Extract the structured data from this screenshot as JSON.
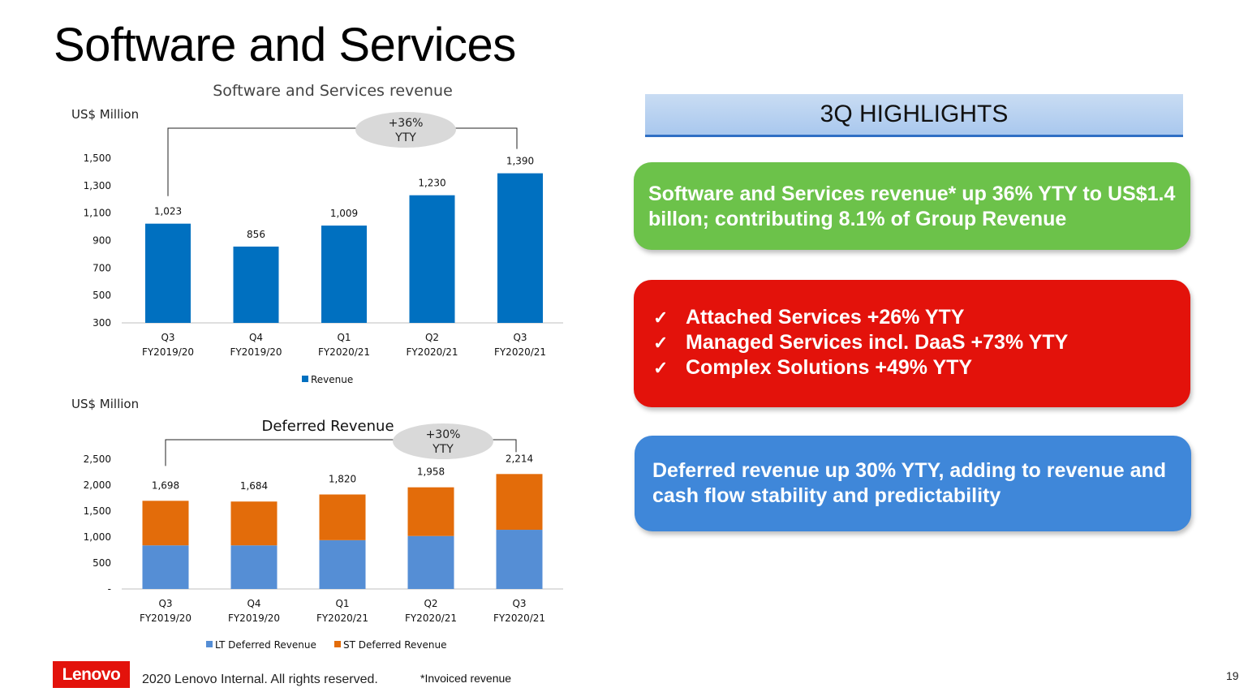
{
  "page": {
    "title": "Software and Services",
    "page_number": "19"
  },
  "highlights": {
    "header": "3Q HIGHLIGHTS",
    "green_text": "Software and Services revenue* up 36% YTY to US$1.4 billon; contributing 8.1% of Group Revenue",
    "checkmark": "✓",
    "red_items": [
      "Attached Services +26% YTY",
      "Managed Services incl. DaaS +73% YTY",
      "Complex Solutions +49% YTY"
    ],
    "blue_text": "Deferred revenue up 30% YTY, adding to revenue and cash flow stability and predictability"
  },
  "footer": {
    "logo": "Lenovo",
    "copyright": "2020 Lenovo Internal. All rights reserved.",
    "note": "*Invoiced revenue"
  },
  "colors": {
    "revenue_bar": "#0070c0",
    "lt_deferred": "#558ed5",
    "st_deferred": "#e36c0a",
    "green_card": "#6cc24a",
    "red_card": "#e3120b",
    "blue_card": "#3f87d9"
  },
  "chart_data": [
    {
      "type": "bar",
      "title": "Software and Services revenue",
      "ylabel": "US$ Million",
      "categories": [
        [
          "Q3",
          "FY2019/20"
        ],
        [
          "Q4",
          "FY2019/20"
        ],
        [
          "Q1",
          "FY2020/21"
        ],
        [
          "Q2",
          "FY2020/21"
        ],
        [
          "Q3",
          "FY2020/21"
        ]
      ],
      "series": [
        {
          "name": "Revenue",
          "values": [
            1023,
            856,
            1009,
            1230,
            1390
          ]
        }
      ],
      "data_labels": [
        "1,023",
        "856",
        "1,009",
        "1,230",
        "1,390"
      ],
      "yticks": [
        "1,500",
        "1,300",
        "1,100",
        "900",
        "700",
        "500",
        "300"
      ],
      "ytick_values": [
        1500,
        1300,
        1100,
        900,
        700,
        500,
        300
      ],
      "ylim": [
        300,
        1500
      ],
      "annotation": {
        "line1": "+36%",
        "line2": "YTY"
      },
      "legend_position": "bottom",
      "grid": false
    },
    {
      "type": "bar",
      "stacked": true,
      "title": "Deferred Revenue",
      "ylabel": "US$ Million",
      "categories": [
        [
          "Q3",
          "FY2019/20"
        ],
        [
          "Q4",
          "FY2019/20"
        ],
        [
          "Q1",
          "FY2020/21"
        ],
        [
          "Q2",
          "FY2020/21"
        ],
        [
          "Q3",
          "FY2020/21"
        ]
      ],
      "series": [
        {
          "name": "LT Deferred Revenue",
          "values": [
            840,
            840,
            940,
            1020,
            1140
          ]
        },
        {
          "name": "ST Deferred Revenue",
          "values": [
            858,
            844,
            880,
            938,
            1074
          ]
        }
      ],
      "totals": [
        1698,
        1684,
        1820,
        1958,
        2214
      ],
      "data_labels": [
        "1,698",
        "1,684",
        "1,820",
        "1,958",
        "2,214"
      ],
      "yticks": [
        "2,500",
        "2,000",
        "1,500",
        "1,000",
        "500",
        "-"
      ],
      "ytick_values": [
        2500,
        2000,
        1500,
        1000,
        500,
        0
      ],
      "ylim": [
        0,
        2500
      ],
      "annotation": {
        "line1": "+30%",
        "line2": "YTY"
      },
      "legend_position": "bottom",
      "grid": false
    }
  ]
}
